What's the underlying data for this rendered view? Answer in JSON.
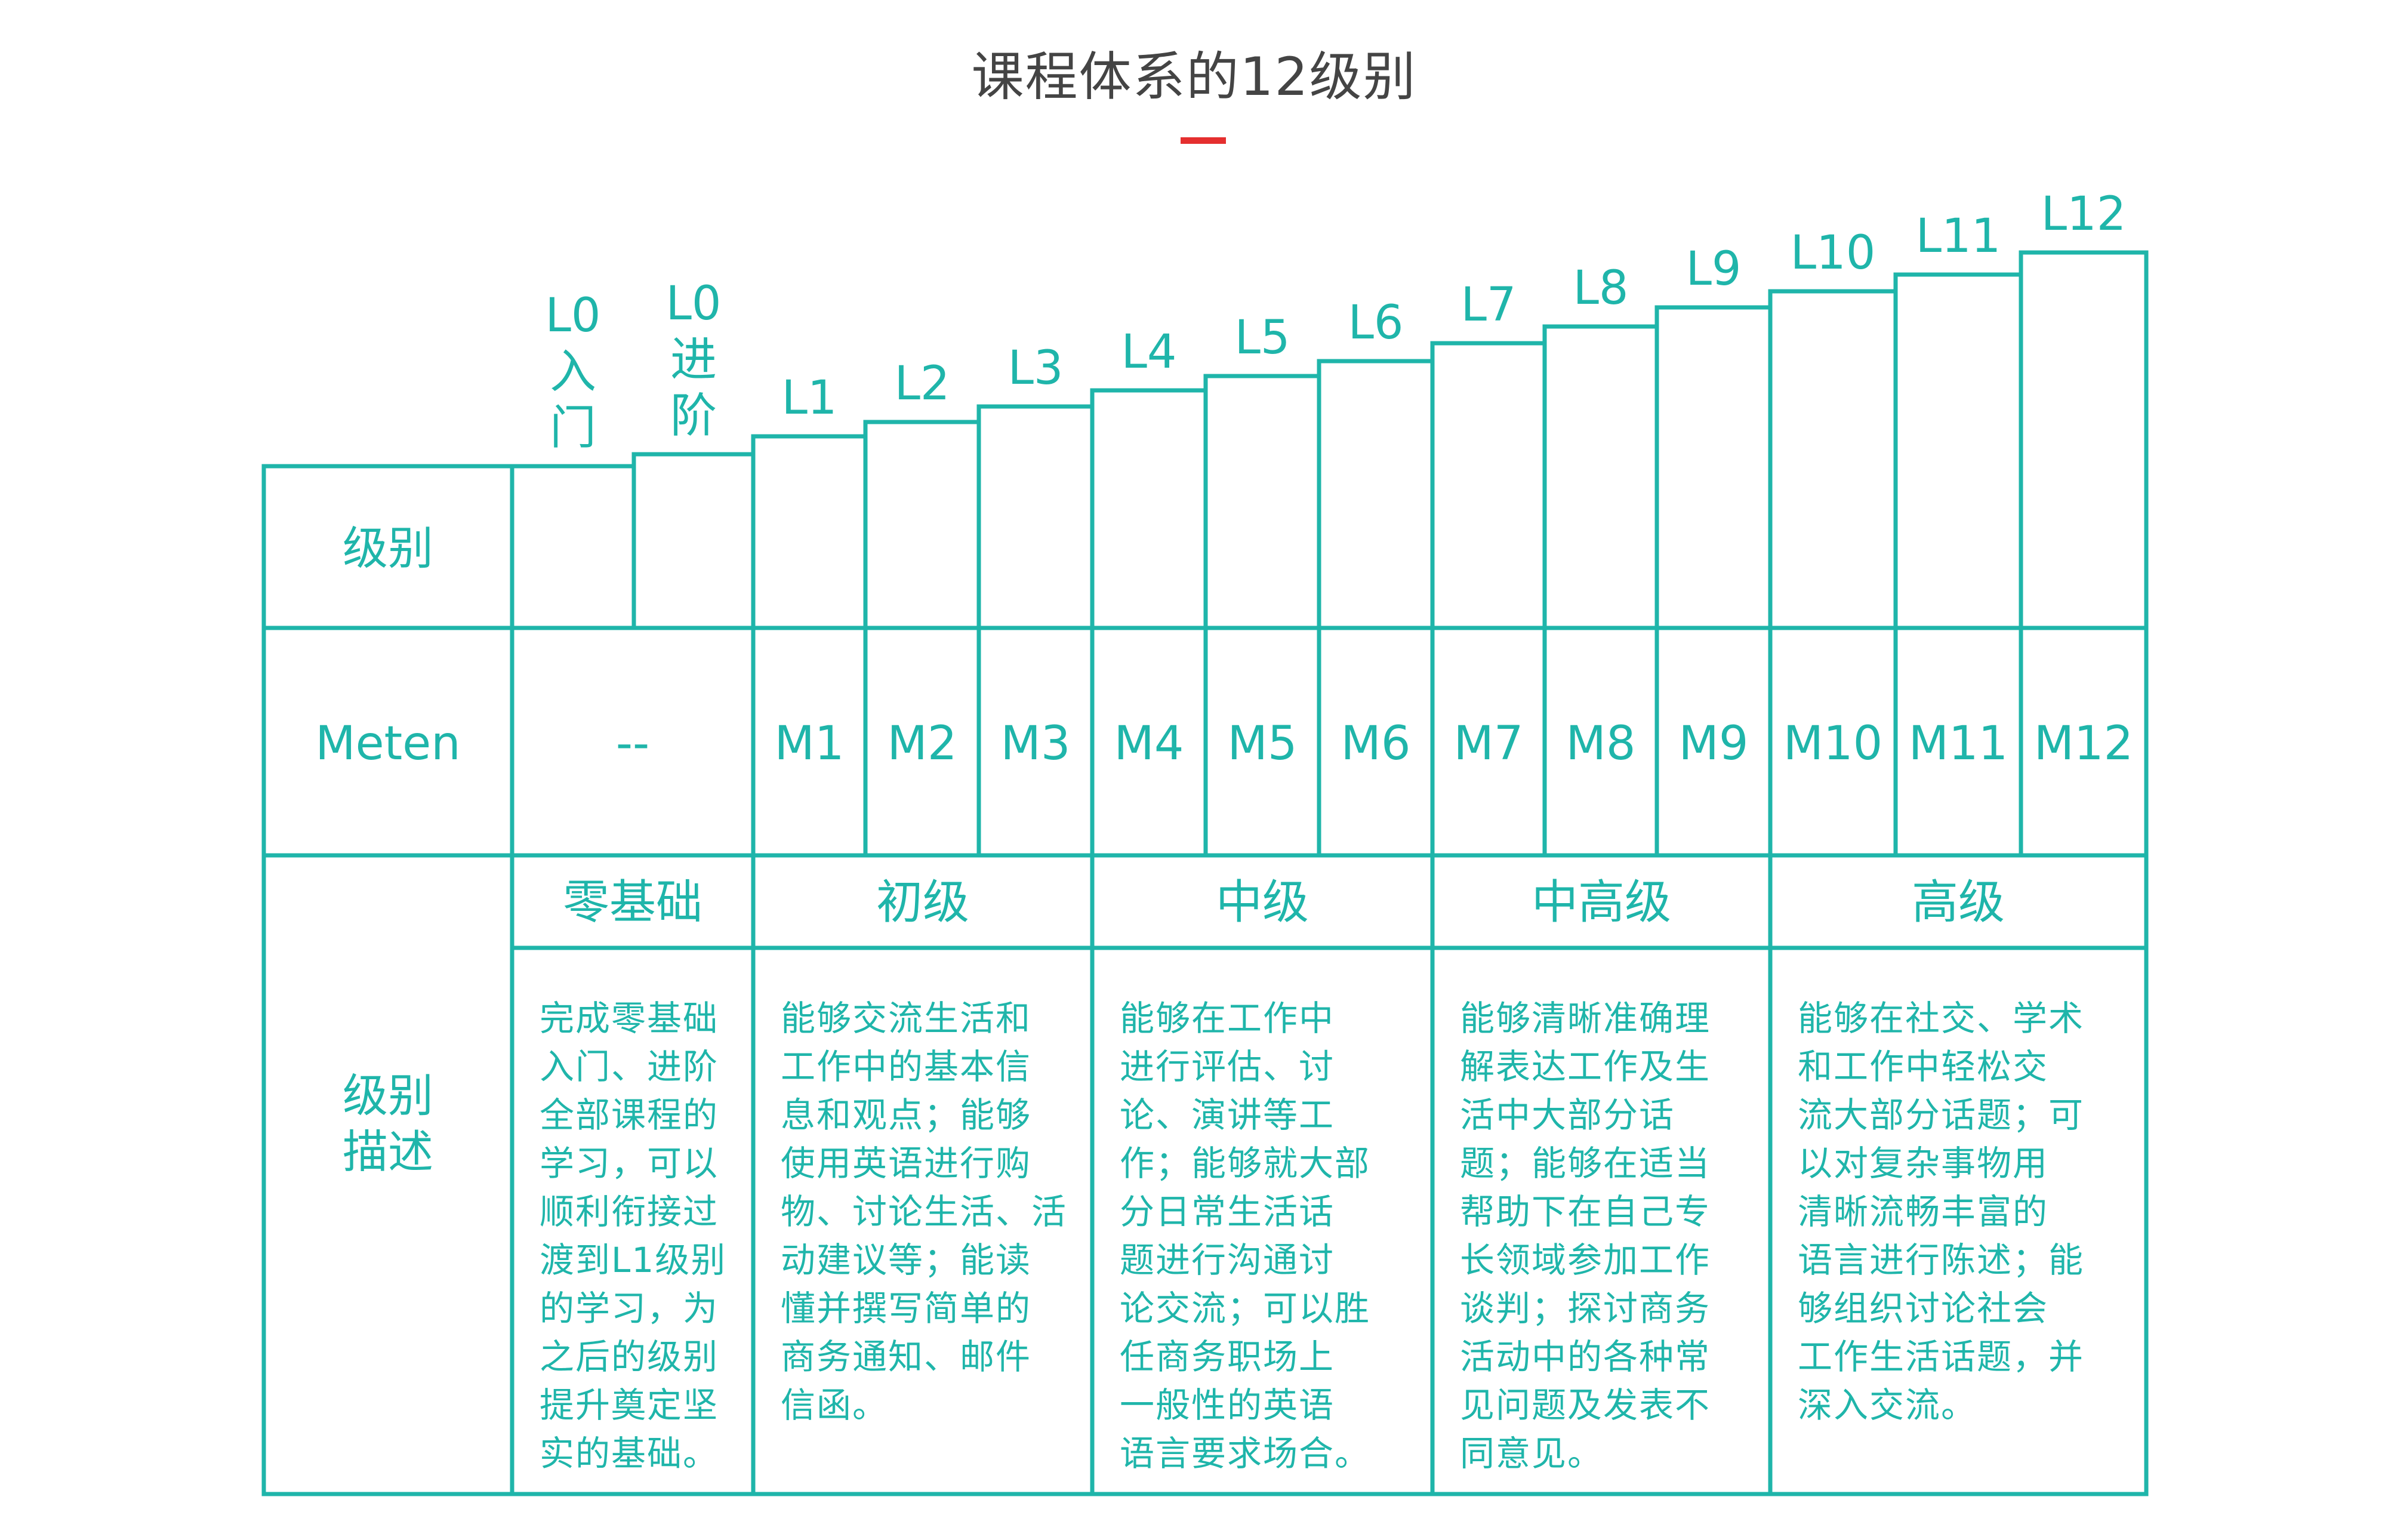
{
  "title": "课程体系的12级别",
  "colors": {
    "line": "#1fb5aa",
    "text": "#1fb5aa",
    "accent": "#e52f2f",
    "title": "#444444"
  },
  "row_labels": {
    "level": "级别",
    "meten": "Meten",
    "description": "级别\n描述"
  },
  "levels": [
    {
      "label": "L0\n入\n门",
      "meten": ""
    },
    {
      "label": "L0\n进\n阶",
      "meten": ""
    },
    {
      "label": "L1",
      "meten": "M1"
    },
    {
      "label": "L2",
      "meten": "M2"
    },
    {
      "label": "L3",
      "meten": "M3"
    },
    {
      "label": "L4",
      "meten": "M4"
    },
    {
      "label": "L5",
      "meten": "M5"
    },
    {
      "label": "L6",
      "meten": "M6"
    },
    {
      "label": "L7",
      "meten": "M7"
    },
    {
      "label": "L8",
      "meten": "M8"
    },
    {
      "label": "L9",
      "meten": "M9"
    },
    {
      "label": "L10",
      "meten": "M10"
    },
    {
      "label": "L11",
      "meten": "M11"
    },
    {
      "label": "L12",
      "meten": "M12"
    }
  ],
  "meten_l0": "--",
  "groups": [
    {
      "name": "零基础",
      "description": "完成零基础\n入门、进阶\n全部课程的\n学习，可以\n顺利衔接过\n渡到L1级别\n的学习，为\n之后的级别\n提升奠定坚\n实的基础。"
    },
    {
      "name": "初级",
      "description": "能够交流生活和\n工作中的基本信\n息和观点；能够\n使用英语进行购\n物、讨论生活、活\n动建议等；能读\n懂并撰写简单的\n商务通知、邮件\n信函。"
    },
    {
      "name": "中级",
      "description": "能够在工作中\n进行评估、讨\n论、演讲等工\n作；能够就大部\n分日常生活话\n题进行沟通讨\n论交流；可以胜\n任商务职场上\n一般性的英语\n语言要求场合。"
    },
    {
      "name": "中高级",
      "description": "能够清晰准确理\n解表达工作及生\n活中大部分话\n题；能够在适当\n帮助下在自己专\n长领域参加工作\n谈判；探讨商务\n活动中的各种常\n见问题及发表不\n同意见。"
    },
    {
      "name": "高级",
      "description": "能够在社交、学术\n和工作中轻松交\n流大部分话题；可\n以对复杂事物用\n清晰流畅丰富的\n语言进行陈述；能\n够组织讨论社会\n工作生活话题，并\n深入交流。"
    }
  ]
}
